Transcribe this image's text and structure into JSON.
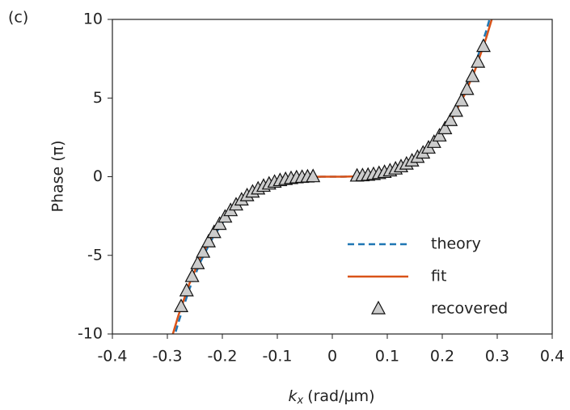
{
  "chart_data": {
    "type": "line",
    "panel_label": "(c)",
    "x_label": {
      "symbol": "k",
      "subscript": "x",
      "unit": "(rad/μm)"
    },
    "y_label": "Phase (π)",
    "xlim": [
      -0.4,
      0.4
    ],
    "xticks": [
      -0.4,
      -0.3,
      -0.2,
      -0.1,
      0,
      0.1,
      0.2,
      0.3,
      0.4
    ],
    "ylim": [
      -10,
      10
    ],
    "yticks": [
      -10,
      -5,
      0,
      5,
      10
    ],
    "legend": "lower right",
    "series": [
      {
        "name": "theory",
        "color": "#1f77b4",
        "style": "dashed",
        "kind": "line",
        "x": [
          -0.29,
          -0.28,
          -0.26,
          -0.24,
          -0.22,
          -0.2,
          -0.18,
          -0.16,
          -0.14,
          -0.12,
          -0.1,
          -0.08,
          -0.06,
          -0.04,
          -0.02,
          0,
          0.02,
          0.04,
          0.06,
          0.08,
          0.1,
          0.12,
          0.14,
          0.16,
          0.18,
          0.2,
          0.22,
          0.24,
          0.26,
          0.28,
          0.29
        ],
        "values": [
          -10.5,
          -9.27,
          -7.15,
          -5.43,
          -4.04,
          -2.94,
          -2.08,
          -1.42,
          -0.92,
          -0.57,
          -0.33,
          -0.17,
          -0.07,
          -0.02,
          0,
          0,
          0,
          0.02,
          0.07,
          0.17,
          0.33,
          0.57,
          0.92,
          1.42,
          2.08,
          2.94,
          4.04,
          5.43,
          7.15,
          9.27,
          10.5
        ]
      },
      {
        "name": "fit",
        "color": "#d95319",
        "style": "solid",
        "kind": "line",
        "x": [
          -0.29,
          -0.28,
          -0.26,
          -0.24,
          -0.22,
          -0.2,
          -0.18,
          -0.16,
          -0.14,
          -0.12,
          -0.1,
          -0.08,
          -0.06,
          -0.04,
          -0.02,
          0,
          0.02,
          0.04,
          0.06,
          0.08,
          0.1,
          0.12,
          0.14,
          0.16,
          0.18,
          0.2,
          0.22,
          0.24,
          0.26,
          0.28,
          0.29
        ],
        "values": [
          -10,
          -8.83,
          -6.81,
          -5.17,
          -3.85,
          -2.8,
          -1.98,
          -1.35,
          -0.88,
          -0.54,
          -0.31,
          -0.16,
          -0.07,
          -0.02,
          0,
          0,
          0,
          0.02,
          0.07,
          0.16,
          0.31,
          0.54,
          0.88,
          1.35,
          1.98,
          2.8,
          3.85,
          5.17,
          6.81,
          8.83,
          10
        ]
      },
      {
        "name": "recovered",
        "color": "#cccccc",
        "kind": "marker",
        "x": [
          -0.275,
          -0.265,
          -0.255,
          -0.245,
          -0.235,
          -0.225,
          -0.215,
          -0.205,
          -0.195,
          -0.185,
          -0.175,
          -0.165,
          -0.155,
          -0.145,
          -0.135,
          -0.125,
          -0.115,
          -0.105,
          -0.095,
          -0.085,
          -0.075,
          -0.065,
          -0.055,
          -0.045,
          -0.035,
          0.045,
          0.055,
          0.065,
          0.075,
          0.085,
          0.095,
          0.105,
          0.115,
          0.125,
          0.135,
          0.145,
          0.155,
          0.165,
          0.175,
          0.185,
          0.195,
          0.205,
          0.215,
          0.225,
          0.235,
          0.245,
          0.255,
          0.265,
          0.275
        ],
        "values": [
          -8.27,
          -7.27,
          -6.36,
          -5.54,
          -4.81,
          -4.15,
          -3.56,
          -3.04,
          -2.58,
          -2.17,
          -1.81,
          -1.49,
          -1.22,
          -0.99,
          -0.79,
          -0.62,
          -0.48,
          -0.36,
          -0.26,
          -0.19,
          -0.13,
          -0.08,
          -0.05,
          -0.03,
          -0.01,
          0.03,
          0.05,
          0.08,
          0.13,
          0.19,
          0.26,
          0.36,
          0.48,
          0.62,
          0.79,
          0.99,
          1.22,
          1.49,
          1.81,
          2.17,
          2.58,
          3.04,
          3.56,
          4.15,
          4.81,
          5.54,
          6.36,
          7.27,
          8.27
        ]
      }
    ]
  }
}
